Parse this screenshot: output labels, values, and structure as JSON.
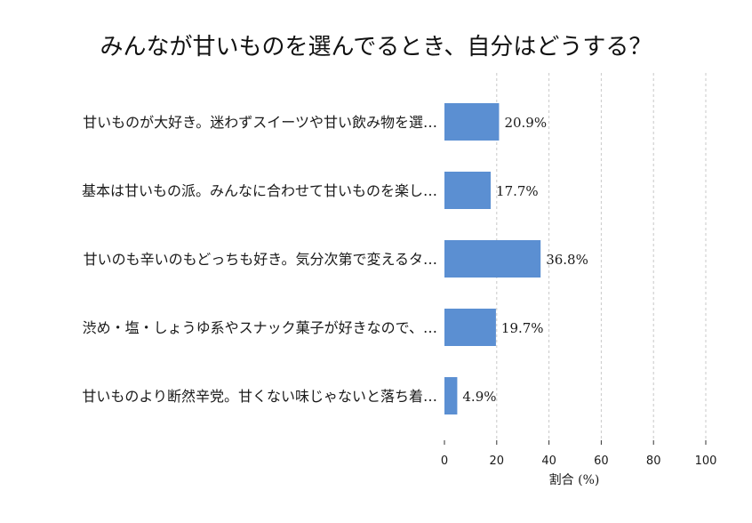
{
  "chart_data": {
    "type": "bar",
    "orientation": "horizontal",
    "title": "みんなが甘いものを選んでるとき、自分はどうする？",
    "categories": [
      "甘いものが大好き。迷わずスイーツや甘い飲み物を選…",
      "基本は甘いもの派。みんなに合わせて甘いものを楽し…",
      "甘いのも辛いのもどっちも好き。気分次第で変えるタ…",
      "渋め・塩・しょうゆ系やスナック菓子が好きなので、…",
      "甘いものより断然辛党。甘くない味じゃないと落ち着…"
    ],
    "values": [
      20.9,
      17.7,
      36.8,
      19.7,
      4.9
    ],
    "value_labels": [
      "20.9%",
      "17.7%",
      "36.8%",
      "19.7%",
      "4.9%"
    ],
    "xlabel": "割合 (%)",
    "xlim": [
      0,
      100
    ],
    "xticks": [
      0,
      20,
      40,
      60,
      80,
      100
    ],
    "grid": "vertical dashed",
    "bar_color": "#5b8fd2"
  }
}
